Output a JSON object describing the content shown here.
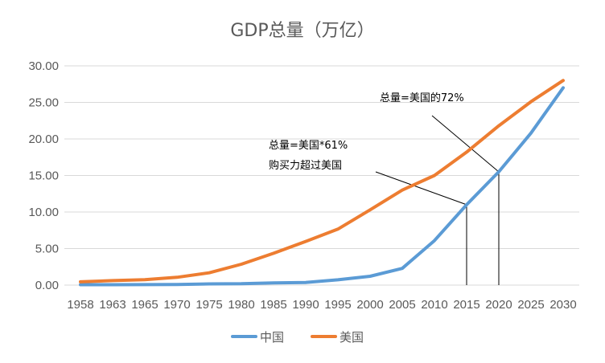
{
  "chart_data": {
    "type": "line",
    "title": "GDP总量（万亿）",
    "xlabel": "",
    "ylabel": "",
    "categories": [
      "1958",
      "1963",
      "1965",
      "1970",
      "1975",
      "1980",
      "1985",
      "1990",
      "1995",
      "2000",
      "2005",
      "2010",
      "2015",
      "2020",
      "2025",
      "2030"
    ],
    "series": [
      {
        "name": "中国",
        "color": "#5B9BD5",
        "values": [
          0.05,
          0.05,
          0.07,
          0.09,
          0.16,
          0.19,
          0.31,
          0.36,
          0.73,
          1.21,
          2.29,
          6.09,
          11.0,
          15.5,
          20.8,
          27.0
        ]
      },
      {
        "name": "美国",
        "color": "#ED7D31",
        "values": [
          0.45,
          0.62,
          0.74,
          1.07,
          1.68,
          2.86,
          4.35,
          5.98,
          7.66,
          10.3,
          13.0,
          15.0,
          18.2,
          21.8,
          25.1,
          28.0
        ]
      }
    ],
    "ylim": [
      0,
      30
    ],
    "yticks": [
      "0.00",
      "5.00",
      "10.00",
      "15.00",
      "20.00",
      "25.00",
      "30.00"
    ],
    "grid": true,
    "legend": "bottom",
    "annotations": [
      {
        "lines": [
          "总量=美国的72%"
        ],
        "target_category": "2020",
        "target_value": 15.5
      },
      {
        "lines": [
          "总量=美国*61%",
          "购买力超过美国"
        ],
        "target_category": "2015",
        "target_value": 11.0
      }
    ]
  }
}
